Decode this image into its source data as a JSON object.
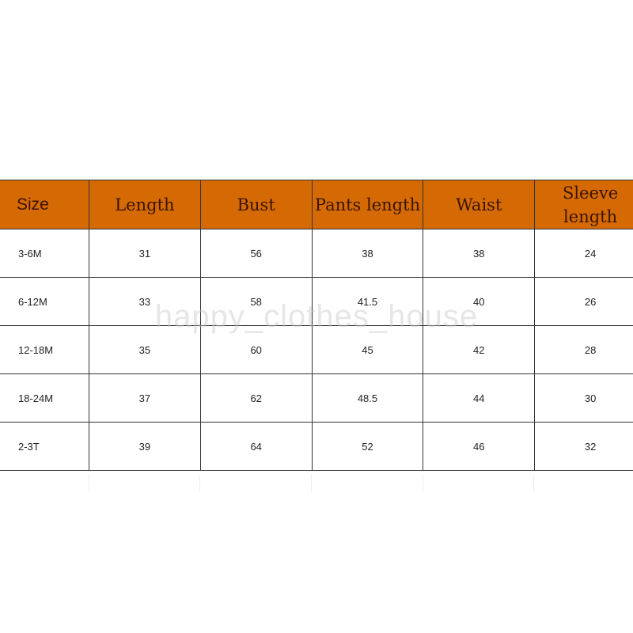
{
  "size_chart": {
    "headers": [
      "Size",
      "Length",
      "Bust",
      "Pants length",
      "Waist",
      "Sleeve length"
    ],
    "header_color": "#d56a05",
    "rows": [
      [
        "3-6M",
        "31",
        "56",
        "38",
        "38",
        "24"
      ],
      [
        "6-12M",
        "33",
        "58",
        "41.5",
        "40",
        "26"
      ],
      [
        "12-18M",
        "35",
        "60",
        "45",
        "42",
        "28"
      ],
      [
        "18-24M",
        "37",
        "62",
        "48.5",
        "44",
        "30"
      ],
      [
        "2-3T",
        "39",
        "64",
        "52",
        "46",
        "32"
      ]
    ]
  },
  "watermark": "happy_clothes_house"
}
